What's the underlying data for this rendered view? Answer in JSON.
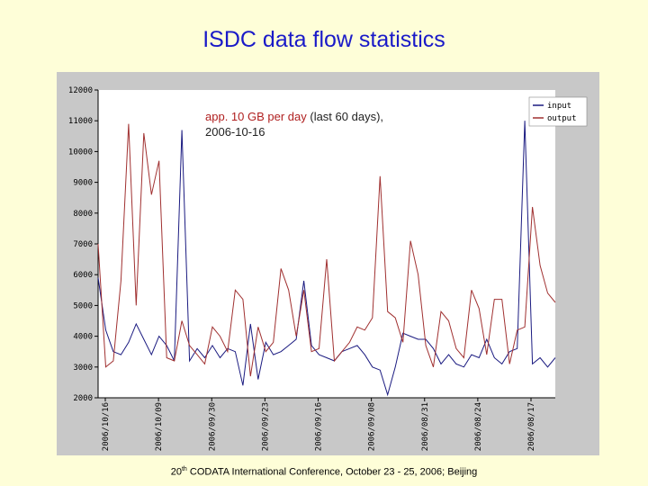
{
  "slide": {
    "title": "ISDC data flow statistics",
    "footer_ordinal": "20",
    "footer_sup": "th",
    "footer_text": " CODATA International Conference, October 23 - 25, 2006; Beijing"
  },
  "annotation": {
    "highlight": "app. 10 GB per day",
    "rest": " (last 60 days),",
    "date": "2006-10-16"
  },
  "colors": {
    "input": "#1a1a80",
    "output": "#a03030"
  },
  "chart_data": {
    "type": "line",
    "title": "",
    "xlabel": "",
    "ylabel": "",
    "ylim": [
      2000,
      12000
    ],
    "yticks": [
      2000,
      3000,
      4000,
      5000,
      6000,
      7000,
      8000,
      9000,
      10000,
      11000,
      12000
    ],
    "xticks": [
      "2006/10/16",
      "2006/10/09",
      "2006/09/30",
      "2006/09/23",
      "2006/09/16",
      "2006/09/08",
      "2006/08/31",
      "2006/08/24",
      "2006/08/17"
    ],
    "grid": false,
    "legend": "top-right",
    "x": [
      0,
      1,
      2,
      3,
      4,
      5,
      6,
      7,
      8,
      9,
      10,
      11,
      12,
      13,
      14,
      15,
      16,
      17,
      18,
      19,
      20,
      21,
      22,
      23,
      24,
      25,
      26,
      27,
      28,
      29,
      30,
      31,
      32,
      33,
      34,
      35,
      36,
      37,
      38,
      39,
      40,
      41,
      42,
      43,
      44,
      45,
      46,
      47,
      48,
      49,
      50,
      51,
      52,
      53,
      54,
      55,
      56,
      57,
      58,
      59,
      60
    ],
    "series": [
      {
        "name": "input",
        "values": [
          5900,
          4200,
          3500,
          3400,
          3800,
          4400,
          3900,
          3400,
          4000,
          3700,
          3200,
          10700,
          3200,
          3600,
          3300,
          3700,
          3300,
          3600,
          3500,
          2400,
          4400,
          2600,
          3800,
          3400,
          3500,
          3700,
          3900,
          5800,
          3700,
          3400,
          3300,
          3200,
          3500,
          3600,
          3700,
          3400,
          3000,
          2900,
          2100,
          3000,
          4100,
          4000,
          3900,
          3900,
          3600,
          3100,
          3400,
          3100,
          3000,
          3400,
          3300,
          3900,
          3300,
          3100,
          3500,
          3600,
          11000,
          3100,
          3300,
          3000,
          3300
        ]
      },
      {
        "name": "output",
        "values": [
          7000,
          3000,
          3200,
          5800,
          10900,
          5000,
          10600,
          8600,
          9700,
          3300,
          3200,
          4500,
          3700,
          3400,
          3100,
          4300,
          4000,
          3500,
          5500,
          5200,
          2700,
          4300,
          3500,
          3800,
          6200,
          5500,
          4000,
          5500,
          3500,
          3600,
          6500,
          3200,
          3500,
          3800,
          4300,
          4200,
          4600,
          9200,
          4800,
          4600,
          3800,
          7100,
          6000,
          3700,
          3000,
          4800,
          4500,
          3600,
          3300,
          5500,
          4900,
          3400,
          5200,
          5200,
          3100,
          4200,
          4300,
          8200,
          6300,
          5400,
          5100
        ]
      }
    ]
  }
}
